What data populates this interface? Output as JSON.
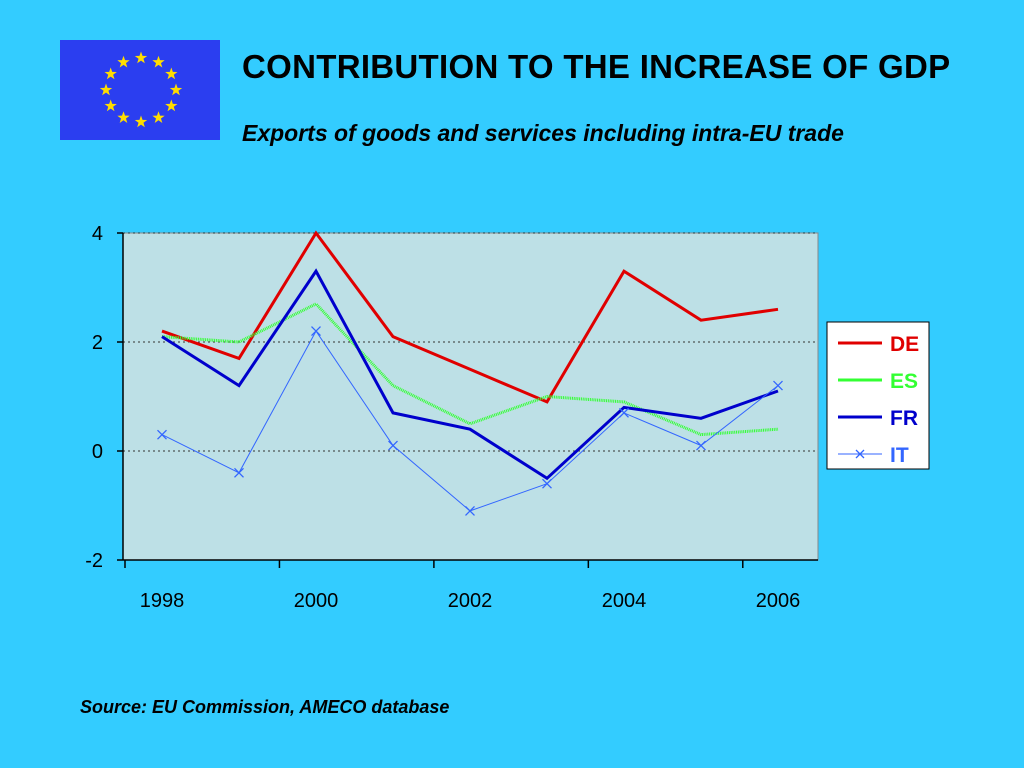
{
  "slide": {
    "title": "CONTRIBUTION TO THE INCREASE OF GDP",
    "subtitle": "Exports of goods and services including intra-EU trade",
    "source": "Source: EU Commission, AMECO database",
    "flag_icon": "eu-flag-icon",
    "colors": {
      "background": "#33ccff",
      "plot_area": "#bde0e6",
      "flag_blue": "#2b3ef0",
      "flag_star": "#ffdd00"
    }
  },
  "chart_data": {
    "type": "line",
    "title": "",
    "xlabel": "",
    "ylabel": "",
    "x": [
      1998,
      1999,
      2000,
      2001,
      2002,
      2003,
      2004,
      2005,
      2006
    ],
    "x_tick_labels": [
      "1998",
      "2000",
      "2002",
      "2004",
      "2006"
    ],
    "y_tick_labels": [
      "4",
      "2",
      "0",
      "-2"
    ],
    "ylim": [
      -2,
      4
    ],
    "y_ticks": [
      4,
      2,
      0,
      -2
    ],
    "grid": "horizontal dotted at 4, 2, 0",
    "legend_position": "right",
    "series": [
      {
        "name": "DE",
        "color": "#e00000",
        "values": [
          2.2,
          1.7,
          4.0,
          2.1,
          1.5,
          0.9,
          3.3,
          2.4,
          2.6
        ]
      },
      {
        "name": "ES",
        "color": "#33ff33",
        "values": [
          2.1,
          2.0,
          2.7,
          1.2,
          0.5,
          1.0,
          0.9,
          0.3,
          0.4
        ]
      },
      {
        "name": "FR",
        "color": "#0000cc",
        "values": [
          2.1,
          1.2,
          3.3,
          0.7,
          0.4,
          -0.5,
          0.8,
          0.6,
          1.1
        ]
      },
      {
        "name": "IT",
        "color": "#3366ff",
        "marker": "x",
        "values": [
          0.3,
          -0.4,
          2.2,
          0.1,
          -1.1,
          -0.6,
          0.7,
          0.1,
          1.2
        ]
      }
    ]
  }
}
